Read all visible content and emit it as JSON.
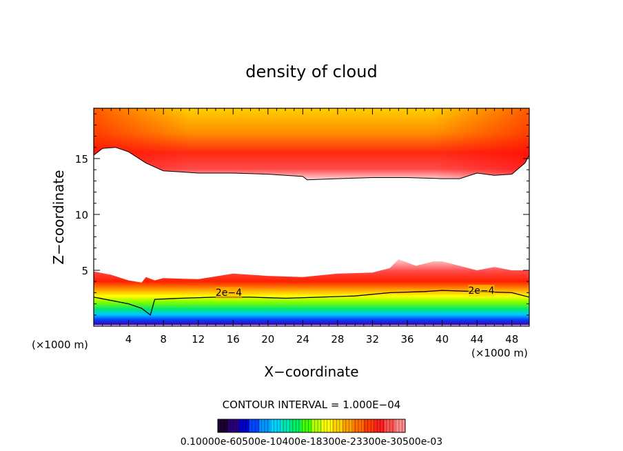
{
  "chart_data": {
    "type": "filled-contour",
    "title": "density of cloud",
    "xlabel": "X−coordinate",
    "ylabel": "Z−coordinate",
    "x_unit_left": "(×1000 m)",
    "x_unit_right": "(×1000 m)",
    "xlim": [
      0,
      50
    ],
    "ylim": [
      0,
      19.5
    ],
    "xticks": [
      4,
      8,
      12,
      16,
      20,
      24,
      28,
      32,
      36,
      40,
      44,
      48
    ],
    "yticks": [
      5,
      10,
      15
    ],
    "contour_interval_text": "CONTOUR INTERVAL = 1.000E−04",
    "contour_labels": [
      {
        "text": "2e−4",
        "x": 15.5,
        "z": 2.7
      },
      {
        "text": "2e−4",
        "x": 44.5,
        "z": 2.9
      }
    ],
    "upper_layer_base": [
      {
        "x": 0,
        "z": 15.3
      },
      {
        "x": 1,
        "z": 15.9
      },
      {
        "x": 2.5,
        "z": 16.0
      },
      {
        "x": 4,
        "z": 15.6
      },
      {
        "x": 6,
        "z": 14.6
      },
      {
        "x": 8,
        "z": 13.9
      },
      {
        "x": 12,
        "z": 13.7
      },
      {
        "x": 16,
        "z": 13.7
      },
      {
        "x": 20,
        "z": 13.6
      },
      {
        "x": 24,
        "z": 13.4
      },
      {
        "x": 24.5,
        "z": 13.1
      },
      {
        "x": 28,
        "z": 13.2
      },
      {
        "x": 32,
        "z": 13.3
      },
      {
        "x": 36,
        "z": 13.3
      },
      {
        "x": 40,
        "z": 13.2
      },
      {
        "x": 42,
        "z": 13.2
      },
      {
        "x": 44,
        "z": 13.7
      },
      {
        "x": 46,
        "z": 13.5
      },
      {
        "x": 48,
        "z": 13.6
      },
      {
        "x": 49.5,
        "z": 14.6
      },
      {
        "x": 50,
        "z": 15.3
      }
    ],
    "lower_layer_top": [
      {
        "x": 0,
        "z": 4.9
      },
      {
        "x": 2,
        "z": 4.6
      },
      {
        "x": 4,
        "z": 4.1
      },
      {
        "x": 5.5,
        "z": 3.9
      },
      {
        "x": 6,
        "z": 4.4
      },
      {
        "x": 7,
        "z": 4.1
      },
      {
        "x": 8,
        "z": 4.3
      },
      {
        "x": 12,
        "z": 4.2
      },
      {
        "x": 16,
        "z": 4.7
      },
      {
        "x": 20,
        "z": 4.5
      },
      {
        "x": 24,
        "z": 4.4
      },
      {
        "x": 28,
        "z": 4.7
      },
      {
        "x": 32,
        "z": 4.8
      },
      {
        "x": 34,
        "z": 5.2
      },
      {
        "x": 35,
        "z": 6.0
      },
      {
        "x": 37,
        "z": 5.4
      },
      {
        "x": 39,
        "z": 5.8
      },
      {
        "x": 40,
        "z": 5.8
      },
      {
        "x": 42,
        "z": 5.4
      },
      {
        "x": 44,
        "z": 5.0
      },
      {
        "x": 46,
        "z": 5.3
      },
      {
        "x": 48,
        "z": 5.0
      },
      {
        "x": 50,
        "z": 5.0
      }
    ],
    "contour_2e-4": [
      {
        "x": 0,
        "z": 2.6
      },
      {
        "x": 2,
        "z": 2.3
      },
      {
        "x": 4,
        "z": 2.0
      },
      {
        "x": 5.5,
        "z": 1.6
      },
      {
        "x": 6.5,
        "z": 1.0
      },
      {
        "x": 7,
        "z": 2.4
      },
      {
        "x": 10,
        "z": 2.5
      },
      {
        "x": 14,
        "z": 2.6
      },
      {
        "x": 18,
        "z": 2.6
      },
      {
        "x": 22,
        "z": 2.5
      },
      {
        "x": 26,
        "z": 2.6
      },
      {
        "x": 30,
        "z": 2.7
      },
      {
        "x": 34,
        "z": 3.0
      },
      {
        "x": 38,
        "z": 3.1
      },
      {
        "x": 40,
        "z": 3.2
      },
      {
        "x": 44,
        "z": 3.1
      },
      {
        "x": 48,
        "z": 3.0
      },
      {
        "x": 50,
        "z": 2.6
      }
    ],
    "lower_layer_bottom_z": 0.1,
    "colorbar": {
      "range": [
        0.0001,
        0.0003
      ],
      "tick_labels_text": "0.10000e-60500e-10400e-18300e-23300e-30500e-03",
      "colors": [
        "#1a0033",
        "#2a007a",
        "#0000c8",
        "#0046ff",
        "#0096ff",
        "#00d2ff",
        "#00e6b4",
        "#00f064",
        "#3cff00",
        "#b4ff00",
        "#ffff00",
        "#ffd200",
        "#ffa000",
        "#ff6e00",
        "#ff3c00",
        "#ff1e1e",
        "#ff5050",
        "#ff8c8c"
      ]
    }
  }
}
